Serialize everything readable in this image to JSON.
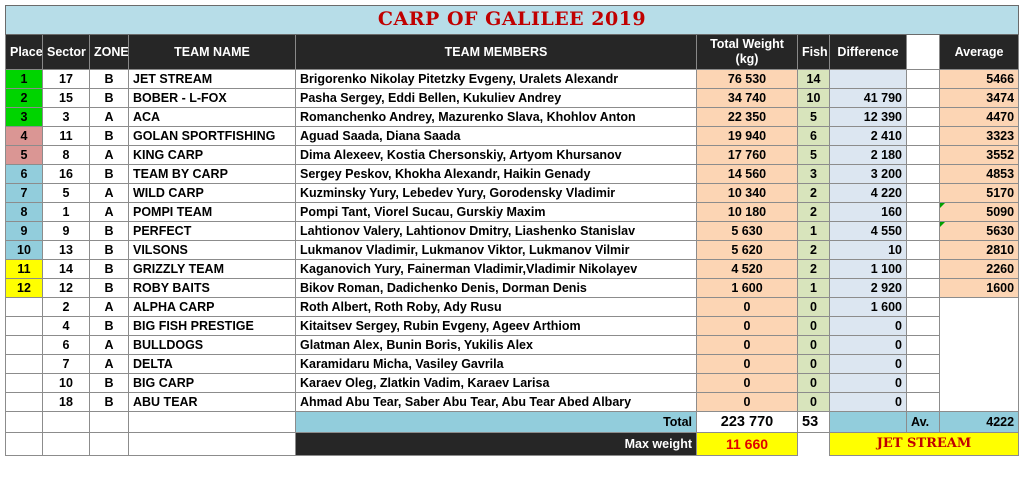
{
  "title": "CARP OF GALILEE 2019",
  "headers": {
    "place": "Place",
    "sector": "Sector",
    "zone": "ZONE",
    "team_name": "TEAM NAME",
    "team_members": "TEAM MEMBERS",
    "total_weight": "Total Weight (kg)",
    "fish": "Fish",
    "difference": "Difference",
    "average": "Average"
  },
  "colors": {
    "title_band": "#b7dde8",
    "header_bg": "#262626",
    "place_green": "#00d400",
    "place_pink": "#da9694",
    "place_blue": "#92cddc",
    "place_yellow": "#ffff00",
    "weight_cell": "#fcd5b4",
    "fish_cell": "#d8e4bc",
    "difference_cell": "#dce6f1",
    "title_text": "#c00000"
  },
  "rows": [
    {
      "place": "1",
      "sector": "17",
      "zone": "B",
      "team": "JET STREAM",
      "members": "Brigorenko Nikolay Pitetzky Evgeny, Uralets Alexandr",
      "weight": "76 530",
      "fish": "14",
      "diff": "",
      "avg": "5466"
    },
    {
      "place": "2",
      "sector": "15",
      "zone": "B",
      "team": "BOBER - L-FOX",
      "members": "Pasha Sergey, Eddi Bellen, Kukuliev Andrey",
      "weight": "34 740",
      "fish": "10",
      "diff": "41 790",
      "avg": "3474"
    },
    {
      "place": "3",
      "sector": "3",
      "zone": "A",
      "team": "ACA",
      "members": "Romanchenko Andrey, Mazurenko Slava, Khohlov Anton",
      "weight": "22 350",
      "fish": "5",
      "diff": "12 390",
      "avg": "4470"
    },
    {
      "place": "4",
      "sector": "11",
      "zone": "B",
      "team": "GOLAN SPORTFISHING",
      "members": "Aguad Saada, Diana Saada",
      "weight": "19 940",
      "fish": "6",
      "diff": "2 410",
      "avg": "3323"
    },
    {
      "place": "5",
      "sector": "8",
      "zone": "A",
      "team": "KING CARP",
      "members": "Dima Alexeev, Kostia Chersonskiy, Artyom Khursanov",
      "weight": "17 760",
      "fish": "5",
      "diff": "2 180",
      "avg": "3552"
    },
    {
      "place": "6",
      "sector": "16",
      "zone": "B",
      "team": "TEAM BY CARP",
      "members": "Sergey Peskov, Khokha Alexandr, Haikin Genady",
      "weight": "14 560",
      "fish": "3",
      "diff": "3 200",
      "avg": "4853"
    },
    {
      "place": "7",
      "sector": "5",
      "zone": "A",
      "team": "WILD CARP",
      "members": "Kuzminsky Yury, Lebedev Yury, Gorodensky Vladimir",
      "weight": "10 340",
      "fish": "2",
      "diff": "4 220",
      "avg": "5170"
    },
    {
      "place": "8",
      "sector": "1",
      "zone": "A",
      "team": "POMPI TEAM",
      "members": "Pompi Tant, Viorel Sucau, Gurskiy Maxim",
      "weight": "10 180",
      "fish": "2",
      "diff": "160",
      "avg": "5090"
    },
    {
      "place": "9",
      "sector": "9",
      "zone": "B",
      "team": "PERFECT",
      "members": "Lahtionov Valery, Lahtionov Dmitry, Liashenko Stanislav",
      "weight": "5 630",
      "fish": "1",
      "diff": "4 550",
      "avg": "5630"
    },
    {
      "place": "10",
      "sector": "13",
      "zone": "B",
      "team": "VILSONS",
      "members": "Lukmanov Vladimir, Lukmanov Viktor, Lukmanov Vilmir",
      "weight": "5 620",
      "fish": "2",
      "diff": "10",
      "avg": "2810"
    },
    {
      "place": "11",
      "sector": "14",
      "zone": "B",
      "team": "GRIZZLY TEAM",
      "members": "Kaganovich Yury, Fainerman Vladimir,Vladimir Nikolayev",
      "weight": "4 520",
      "fish": "2",
      "diff": "1 100",
      "avg": "2260"
    },
    {
      "place": "12",
      "sector": "12",
      "zone": "B",
      "team": "ROBY BAITS",
      "members": "Bikov Roman, Dadichenko Denis, Dorman Denis",
      "weight": "1 600",
      "fish": "1",
      "diff": "2 920",
      "avg": "1600"
    },
    {
      "place": "",
      "sector": "2",
      "zone": "A",
      "team": "ALPHA CARP",
      "members": "Roth Albert, Roth Roby, Ady Rusu",
      "weight": "0",
      "fish": "0",
      "diff": "1 600",
      "avg": ""
    },
    {
      "place": "",
      "sector": "4",
      "zone": "B",
      "team": "BIG FISH PRESTIGE",
      "members": "Kitaitsev Sergey, Rubin Evgeny, Ageev Arthiom",
      "weight": "0",
      "fish": "0",
      "diff": "0",
      "avg": ""
    },
    {
      "place": "",
      "sector": "6",
      "zone": "A",
      "team": "BULLDOGS",
      "members": "Glatman Alex, Bunin Boris, Yukilis Alex",
      "weight": "0",
      "fish": "0",
      "diff": "0",
      "avg": ""
    },
    {
      "place": "",
      "sector": "7",
      "zone": "A",
      "team": "DELTA",
      "members": "Karamidaru Micha, Vasiley Gavrila",
      "weight": "0",
      "fish": "0",
      "diff": "0",
      "avg": ""
    },
    {
      "place": "",
      "sector": "10",
      "zone": "B",
      "team": "BIG CARP",
      "members": "Karaev Oleg, Zlatkin Vadim, Karaev Larisa",
      "weight": "0",
      "fish": "0",
      "diff": "0",
      "avg": ""
    },
    {
      "place": "",
      "sector": "18",
      "zone": "B",
      "team": "ABU TEAR",
      "members": "Ahmad Abu Tear, Saber Abu Tear, Abu Tear Abed Albary",
      "weight": "0",
      "fish": "0",
      "diff": "0",
      "avg": ""
    }
  ],
  "totals": {
    "label": "Total",
    "weight": "223 770",
    "fish": "53",
    "av_label": "Av.",
    "average": "4222"
  },
  "max": {
    "label": "Max weight",
    "value": "11 660",
    "team": "JET STREAM"
  }
}
